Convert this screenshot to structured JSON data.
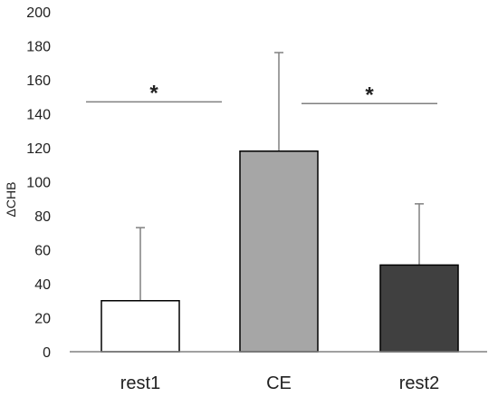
{
  "chart_data": {
    "type": "bar",
    "categories": [
      "rest1",
      "CE",
      "rest2"
    ],
    "values": [
      30,
      118,
      51
    ],
    "error_upper": [
      73,
      176,
      87
    ],
    "bar_colors": [
      "#ffffff",
      "#a6a6a6",
      "#404040"
    ],
    "bar_outline": "#000000",
    "xlabel": "",
    "ylabel": "ΔCHB",
    "ylim": [
      0,
      200
    ],
    "yticks": [
      0,
      20,
      40,
      60,
      80,
      100,
      120,
      140,
      160,
      180,
      200
    ],
    "grid": false,
    "legend": "none",
    "significance": [
      {
        "from": "rest1",
        "to": "CE",
        "y": 147,
        "label": "*"
      },
      {
        "from": "CE",
        "to": "rest2",
        "y": 146,
        "label": "*"
      }
    ]
  }
}
